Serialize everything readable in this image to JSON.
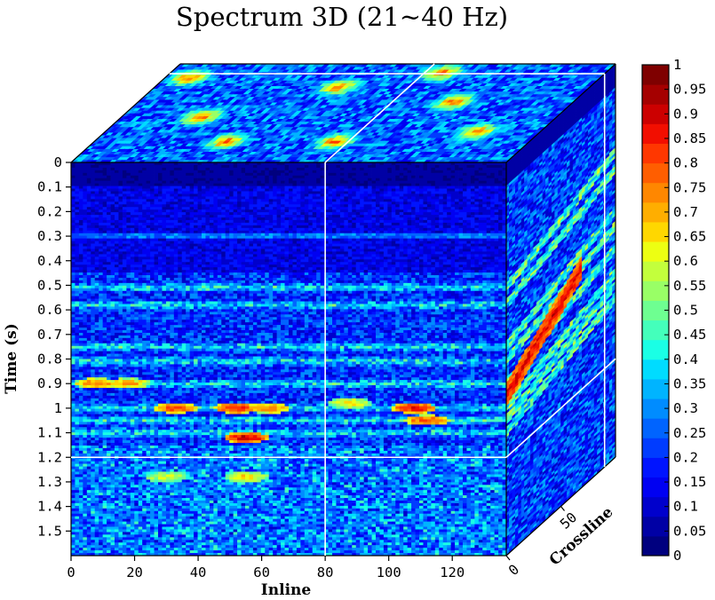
{
  "chart_data": {
    "type": "heatmap",
    "title": "Spectrum 3D (21~40 Hz)",
    "xlabel": "Inline",
    "ylabel": "Time (s)",
    "zlabel": "Crossline",
    "xlim": [
      0,
      137
    ],
    "ylim": [
      0,
      1.6
    ],
    "zlim": [
      0,
      100
    ],
    "x_ticks": [
      "0",
      "20",
      "40",
      "60",
      "80",
      "100",
      "120"
    ],
    "x_tick_values": [
      0,
      20,
      40,
      60,
      80,
      100,
      120
    ],
    "y_ticks": [
      "0",
      "0.1",
      "0.2",
      "0.3",
      "0.4",
      "0.5",
      "0.6",
      "0.7",
      "0.8",
      "0.9",
      "1",
      "1.1",
      "1.2",
      "1.3",
      "1.4",
      "1.5"
    ],
    "y_tick_values": [
      0,
      0.1,
      0.2,
      0.3,
      0.4,
      0.5,
      0.6,
      0.7,
      0.8,
      0.9,
      1.0,
      1.1,
      1.2,
      1.3,
      1.4,
      1.5
    ],
    "z_ticks": [
      "0",
      "50"
    ],
    "z_tick_values": [
      0,
      50
    ],
    "slice_lines": {
      "inline": 80,
      "time": 1.2,
      "crossline": 90
    },
    "colorbar": {
      "min": 0,
      "max": 1,
      "colormap": "jet",
      "ticks": [
        "0",
        "0.05",
        "0.1",
        "0.15",
        "0.2",
        "0.25",
        "0.3",
        "0.35",
        "0.4",
        "0.45",
        "0.5",
        "0.55",
        "0.6",
        "0.65",
        "0.7",
        "0.75",
        "0.8",
        "0.85",
        "0.9",
        "0.95",
        "1"
      ],
      "tick_values": [
        0,
        0.05,
        0.1,
        0.15,
        0.2,
        0.25,
        0.3,
        0.35,
        0.4,
        0.45,
        0.5,
        0.55,
        0.6,
        0.65,
        0.7,
        0.75,
        0.8,
        0.85,
        0.9,
        0.95,
        1.0
      ],
      "colors": [
        "#00007f",
        "#0000a5",
        "#0000cc",
        "#0000f2",
        "#0014ff",
        "#003cff",
        "#0064ff",
        "#008cff",
        "#00b4ff",
        "#00dcff",
        "#1affe5",
        "#44ffbb",
        "#6eff91",
        "#99ff66",
        "#c3ff3c",
        "#edff12",
        "#ffd700",
        "#ffae00",
        "#ff8700",
        "#ff5e00",
        "#ff3700",
        "#f20e00",
        "#cc0000",
        "#a50000",
        "#7f0000"
      ]
    },
    "bright_horizons_s": [
      0.51,
      0.58,
      0.75,
      0.81,
      0.9,
      1.0,
      1.05,
      1.1
    ],
    "front_face_hotspots": [
      {
        "inline": 8,
        "time": 0.9,
        "value": 0.8
      },
      {
        "inline": 18,
        "time": 0.9,
        "value": 0.75
      },
      {
        "inline": 33,
        "time": 1.0,
        "value": 0.85
      },
      {
        "inline": 52,
        "time": 1.0,
        "value": 0.9
      },
      {
        "inline": 55,
        "time": 1.12,
        "value": 0.95
      },
      {
        "inline": 62,
        "time": 1.0,
        "value": 0.8
      },
      {
        "inline": 88,
        "time": 0.98,
        "value": 0.7
      },
      {
        "inline": 108,
        "time": 1.0,
        "value": 0.92
      },
      {
        "inline": 112,
        "time": 1.05,
        "value": 0.85
      },
      {
        "inline": 30,
        "time": 1.28,
        "value": 0.65
      },
      {
        "inline": 55,
        "time": 1.28,
        "value": 0.7
      }
    ]
  }
}
